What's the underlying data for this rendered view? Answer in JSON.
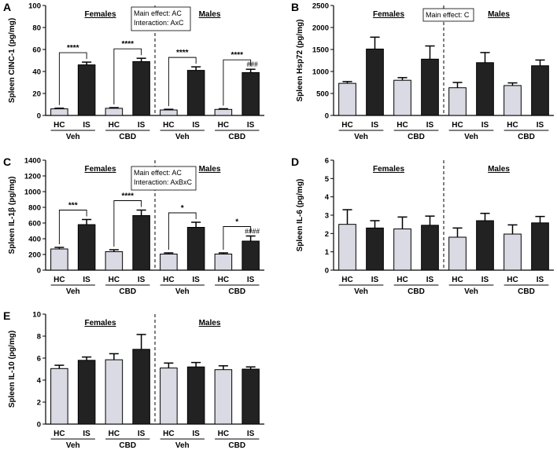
{
  "chart_data": [
    {
      "type": "bar",
      "panel": "A",
      "ylabel": "Spleen CINC-1 (pg/mg)",
      "ylim": [
        0,
        100
      ],
      "yticks": [
        0,
        20,
        40,
        60,
        80,
        100
      ],
      "categories": [
        "HC",
        "IS",
        "HC",
        "IS",
        "HC",
        "IS",
        "HC",
        "IS"
      ],
      "groups": [
        "Veh",
        "CBD",
        "Veh",
        "CBD"
      ],
      "sexes": [
        "Females",
        "Males"
      ],
      "values": [
        6,
        46,
        6.5,
        49,
        5,
        41,
        5.5,
        39
      ],
      "errors": [
        0.6,
        2.5,
        0.6,
        3,
        0.6,
        3.2,
        0.6,
        3
      ],
      "annotation": [
        "Main effect: AC",
        "Interaction: AxC"
      ],
      "significance": [
        {
          "pair": [
            0,
            1
          ],
          "label": "****"
        },
        {
          "pair": [
            2,
            3
          ],
          "label": "****"
        },
        {
          "pair": [
            4,
            5
          ],
          "label": "****"
        },
        {
          "pair": [
            6,
            7
          ],
          "label": "****"
        }
      ],
      "hash_marks": [
        {
          "bar": 7,
          "label": "###"
        }
      ]
    },
    {
      "type": "bar",
      "panel": "B",
      "ylabel": "Spleen Hsp72 (pg/mg)",
      "ylim": [
        0,
        2500
      ],
      "yticks": [
        0,
        500,
        1000,
        1500,
        2000,
        2500
      ],
      "categories": [
        "HC",
        "IS",
        "HC",
        "IS",
        "HC",
        "IS",
        "HC",
        "IS"
      ],
      "groups": [
        "Veh",
        "CBD",
        "Veh",
        "CBD"
      ],
      "sexes": [
        "Females",
        "Males"
      ],
      "values": [
        730,
        1510,
        800,
        1280,
        630,
        1200,
        680,
        1130
      ],
      "errors": [
        40,
        270,
        60,
        300,
        120,
        230,
        60,
        130
      ],
      "annotation": [
        "Main effect: C"
      ],
      "significance": [],
      "hash_marks": []
    },
    {
      "type": "bar",
      "panel": "C",
      "ylabel": "Spleen IL-1β (pg/mg)",
      "ylim": [
        0,
        1400
      ],
      "yticks": [
        0,
        200,
        400,
        600,
        800,
        1000,
        1200,
        1400
      ],
      "categories": [
        "HC",
        "IS",
        "HC",
        "IS",
        "HC",
        "IS",
        "HC",
        "IS"
      ],
      "groups": [
        "Veh",
        "CBD",
        "Veh",
        "CBD"
      ],
      "sexes": [
        "Females",
        "Males"
      ],
      "values": [
        270,
        580,
        235,
        695,
        205,
        545,
        205,
        370
      ],
      "errors": [
        20,
        65,
        25,
        70,
        15,
        65,
        15,
        65
      ],
      "annotation": [
        "Main effect: AC",
        "Interaction: AxBxC"
      ],
      "significance": [
        {
          "pair": [
            0,
            1
          ],
          "label": "***"
        },
        {
          "pair": [
            2,
            3
          ],
          "label": "****"
        },
        {
          "pair": [
            4,
            5
          ],
          "label": "*"
        },
        {
          "pair": [
            6,
            7
          ],
          "label": "*"
        }
      ],
      "hash_marks": [
        {
          "bar": 7,
          "label": "####"
        }
      ]
    },
    {
      "type": "bar",
      "panel": "D",
      "ylabel": "Spleen IL-6 (pg/mg)",
      "ylim": [
        0,
        6
      ],
      "yticks": [
        0,
        1,
        2,
        3,
        4,
        5,
        6
      ],
      "categories": [
        "HC",
        "IS",
        "HC",
        "IS",
        "HC",
        "IS",
        "HC",
        "IS"
      ],
      "groups": [
        "Veh",
        "CBD",
        "Veh",
        "CBD"
      ],
      "sexes": [
        "Females",
        "Males"
      ],
      "values": [
        2.5,
        2.3,
        2.25,
        2.45,
        1.8,
        2.7,
        1.97,
        2.58
      ],
      "errors": [
        0.8,
        0.4,
        0.65,
        0.5,
        0.5,
        0.4,
        0.5,
        0.35
      ],
      "annotation": [],
      "significance": [],
      "hash_marks": []
    },
    {
      "type": "bar",
      "panel": "E",
      "ylabel": "Spleen IL-10 (pg/mg)",
      "ylim": [
        0,
        10
      ],
      "yticks": [
        0,
        2,
        4,
        6,
        8,
        10
      ],
      "categories": [
        "HC",
        "IS",
        "HC",
        "IS",
        "HC",
        "IS",
        "HC",
        "IS"
      ],
      "groups": [
        "Veh",
        "CBD",
        "Veh",
        "CBD"
      ],
      "sexes": [
        "Females",
        "Males"
      ],
      "values": [
        5.05,
        5.8,
        5.85,
        6.8,
        5.1,
        5.2,
        4.95,
        5.0
      ],
      "errors": [
        0.3,
        0.3,
        0.55,
        1.35,
        0.45,
        0.4,
        0.35,
        0.2
      ],
      "annotation": [],
      "significance": [],
      "hash_marks": []
    }
  ],
  "colors": {
    "hc_fill": "#d9dae3",
    "is_fill": "#222222",
    "stroke": "#000000"
  }
}
